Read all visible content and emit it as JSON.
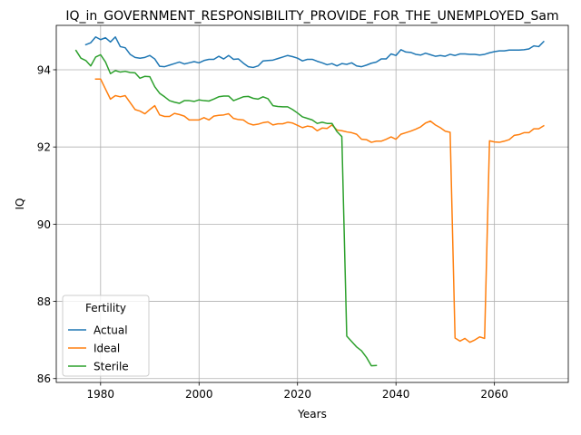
{
  "chart_data": {
    "type": "line",
    "title": "IQ_in_GOVERNMENT_RESPONSIBILITY_PROVIDE_FOR_THE_UNEMPLOYED_Sam",
    "xlabel": "Years",
    "ylabel": "IQ",
    "xlim": [
      1971,
      2075
    ],
    "ylim": [
      85.9,
      95.15
    ],
    "xticks": [
      1980,
      2000,
      2020,
      2040,
      2060
    ],
    "yticks": [
      86,
      88,
      90,
      92,
      94
    ],
    "grid": true,
    "legend": {
      "title": "Fertility",
      "location": "lower-left"
    },
    "series": [
      {
        "name": "Actual",
        "color": "#1f77b4",
        "points": [
          [
            1977,
            94.65
          ],
          [
            1978,
            94.7
          ],
          [
            1979,
            94.85
          ],
          [
            1980,
            94.78
          ],
          [
            1981,
            94.83
          ],
          [
            1982,
            94.72
          ],
          [
            1983,
            94.85
          ],
          [
            1984,
            94.6
          ],
          [
            1985,
            94.57
          ],
          [
            1986,
            94.4
          ],
          [
            1987,
            94.32
          ],
          [
            1988,
            94.3
          ],
          [
            1989,
            94.32
          ],
          [
            1990,
            94.37
          ],
          [
            1991,
            94.28
          ],
          [
            1992,
            94.09
          ],
          [
            1993,
            94.08
          ],
          [
            1994,
            94.12
          ],
          [
            1995,
            94.16
          ],
          [
            1996,
            94.2
          ],
          [
            1997,
            94.15
          ],
          [
            1998,
            94.18
          ],
          [
            1999,
            94.21
          ],
          [
            2000,
            94.18
          ],
          [
            2001,
            94.24
          ],
          [
            2002,
            94.27
          ],
          [
            2003,
            94.27
          ],
          [
            2004,
            94.35
          ],
          [
            2005,
            94.28
          ],
          [
            2006,
            94.37
          ],
          [
            2007,
            94.27
          ],
          [
            2008,
            94.28
          ],
          [
            2009,
            94.17
          ],
          [
            2010,
            94.08
          ],
          [
            2011,
            94.06
          ],
          [
            2012,
            94.1
          ],
          [
            2013,
            94.23
          ],
          [
            2014,
            94.24
          ],
          [
            2015,
            94.25
          ],
          [
            2016,
            94.29
          ],
          [
            2017,
            94.33
          ],
          [
            2018,
            94.37
          ],
          [
            2019,
            94.34
          ],
          [
            2020,
            94.3
          ],
          [
            2021,
            94.23
          ],
          [
            2022,
            94.27
          ],
          [
            2023,
            94.27
          ],
          [
            2024,
            94.22
          ],
          [
            2025,
            94.18
          ],
          [
            2026,
            94.13
          ],
          [
            2027,
            94.16
          ],
          [
            2028,
            94.1
          ],
          [
            2029,
            94.16
          ],
          [
            2030,
            94.14
          ],
          [
            2031,
            94.18
          ],
          [
            2032,
            94.1
          ],
          [
            2033,
            94.08
          ],
          [
            2034,
            94.12
          ],
          [
            2035,
            94.17
          ],
          [
            2036,
            94.2
          ],
          [
            2037,
            94.28
          ],
          [
            2038,
            94.28
          ],
          [
            2039,
            94.41
          ],
          [
            2040,
            94.37
          ],
          [
            2041,
            94.52
          ],
          [
            2042,
            94.46
          ],
          [
            2043,
            94.45
          ],
          [
            2044,
            94.4
          ],
          [
            2045,
            94.38
          ],
          [
            2046,
            94.43
          ],
          [
            2047,
            94.39
          ],
          [
            2048,
            94.35
          ],
          [
            2049,
            94.37
          ],
          [
            2050,
            94.35
          ],
          [
            2051,
            94.4
          ],
          [
            2052,
            94.37
          ],
          [
            2053,
            94.41
          ],
          [
            2054,
            94.41
          ],
          [
            2055,
            94.4
          ],
          [
            2056,
            94.4
          ],
          [
            2057,
            94.38
          ],
          [
            2058,
            94.4
          ],
          [
            2059,
            94.44
          ],
          [
            2060,
            94.47
          ],
          [
            2061,
            94.49
          ],
          [
            2062,
            94.49
          ],
          [
            2063,
            94.51
          ],
          [
            2064,
            94.51
          ],
          [
            2065,
            94.51
          ],
          [
            2066,
            94.52
          ],
          [
            2067,
            94.54
          ],
          [
            2068,
            94.62
          ],
          [
            2069,
            94.6
          ],
          [
            2070,
            94.73
          ]
        ]
      },
      {
        "name": "Ideal",
        "color": "#ff7f0e",
        "points": [
          [
            1979,
            93.76
          ],
          [
            1980,
            93.76
          ],
          [
            1981,
            93.5
          ],
          [
            1982,
            93.24
          ],
          [
            1983,
            93.33
          ],
          [
            1984,
            93.3
          ],
          [
            1985,
            93.33
          ],
          [
            1986,
            93.15
          ],
          [
            1987,
            92.97
          ],
          [
            1988,
            92.93
          ],
          [
            1989,
            92.86
          ],
          [
            1990,
            92.97
          ],
          [
            1991,
            93.07
          ],
          [
            1992,
            92.83
          ],
          [
            1993,
            92.79
          ],
          [
            1994,
            92.79
          ],
          [
            1995,
            92.87
          ],
          [
            1996,
            92.84
          ],
          [
            1997,
            92.8
          ],
          [
            1998,
            92.7
          ],
          [
            1999,
            92.7
          ],
          [
            2000,
            92.7
          ],
          [
            2001,
            92.76
          ],
          [
            2002,
            92.7
          ],
          [
            2003,
            92.8
          ],
          [
            2004,
            92.82
          ],
          [
            2005,
            92.83
          ],
          [
            2006,
            92.86
          ],
          [
            2007,
            92.74
          ],
          [
            2008,
            92.71
          ],
          [
            2009,
            92.7
          ],
          [
            2010,
            92.61
          ],
          [
            2011,
            92.57
          ],
          [
            2012,
            92.59
          ],
          [
            2013,
            92.63
          ],
          [
            2014,
            92.65
          ],
          [
            2015,
            92.57
          ],
          [
            2016,
            92.6
          ],
          [
            2017,
            92.6
          ],
          [
            2018,
            92.64
          ],
          [
            2019,
            92.62
          ],
          [
            2020,
            92.56
          ],
          [
            2021,
            92.5
          ],
          [
            2022,
            92.54
          ],
          [
            2023,
            92.52
          ],
          [
            2024,
            92.42
          ],
          [
            2025,
            92.49
          ],
          [
            2026,
            92.48
          ],
          [
            2027,
            92.57
          ],
          [
            2028,
            92.44
          ],
          [
            2029,
            92.42
          ],
          [
            2030,
            92.39
          ],
          [
            2031,
            92.37
          ],
          [
            2032,
            92.33
          ],
          [
            2033,
            92.2
          ],
          [
            2034,
            92.19
          ],
          [
            2035,
            92.12
          ],
          [
            2036,
            92.15
          ],
          [
            2037,
            92.15
          ],
          [
            2038,
            92.2
          ],
          [
            2039,
            92.26
          ],
          [
            2040,
            92.2
          ],
          [
            2041,
            92.33
          ],
          [
            2042,
            92.37
          ],
          [
            2043,
            92.41
          ],
          [
            2044,
            92.46
          ],
          [
            2045,
            92.52
          ],
          [
            2046,
            92.62
          ],
          [
            2047,
            92.67
          ],
          [
            2048,
            92.57
          ],
          [
            2049,
            92.5
          ],
          [
            2050,
            92.41
          ],
          [
            2051,
            92.38
          ],
          [
            2052,
            87.05
          ],
          [
            2053,
            86.97
          ],
          [
            2054,
            87.04
          ],
          [
            2055,
            86.94
          ],
          [
            2056,
            87.0
          ],
          [
            2057,
            87.08
          ],
          [
            2058,
            87.04
          ],
          [
            2059,
            92.16
          ],
          [
            2060,
            92.13
          ],
          [
            2061,
            92.12
          ],
          [
            2062,
            92.15
          ],
          [
            2063,
            92.19
          ],
          [
            2064,
            92.3
          ],
          [
            2065,
            92.32
          ],
          [
            2066,
            92.37
          ],
          [
            2067,
            92.37
          ],
          [
            2068,
            92.47
          ],
          [
            2069,
            92.47
          ],
          [
            2070,
            92.55
          ]
        ]
      },
      {
        "name": "Sterile",
        "color": "#2ca02c",
        "points": [
          [
            1975,
            94.5
          ],
          [
            1976,
            94.3
          ],
          [
            1977,
            94.24
          ],
          [
            1978,
            94.1
          ],
          [
            1979,
            94.33
          ],
          [
            1980,
            94.39
          ],
          [
            1981,
            94.2
          ],
          [
            1982,
            93.9
          ],
          [
            1983,
            93.98
          ],
          [
            1984,
            93.94
          ],
          [
            1985,
            93.96
          ],
          [
            1986,
            93.93
          ],
          [
            1987,
            93.92
          ],
          [
            1988,
            93.78
          ],
          [
            1989,
            93.83
          ],
          [
            1990,
            93.82
          ],
          [
            1991,
            93.56
          ],
          [
            1992,
            93.39
          ],
          [
            1993,
            93.3
          ],
          [
            1994,
            93.2
          ],
          [
            1995,
            93.16
          ],
          [
            1996,
            93.13
          ],
          [
            1997,
            93.2
          ],
          [
            1998,
            93.2
          ],
          [
            1999,
            93.18
          ],
          [
            2000,
            93.22
          ],
          [
            2001,
            93.2
          ],
          [
            2002,
            93.19
          ],
          [
            2003,
            93.24
          ],
          [
            2004,
            93.3
          ],
          [
            2005,
            93.32
          ],
          [
            2006,
            93.32
          ],
          [
            2007,
            93.2
          ],
          [
            2008,
            93.25
          ],
          [
            2009,
            93.3
          ],
          [
            2010,
            93.31
          ],
          [
            2011,
            93.26
          ],
          [
            2012,
            93.24
          ],
          [
            2013,
            93.3
          ],
          [
            2014,
            93.25
          ],
          [
            2015,
            93.07
          ],
          [
            2016,
            93.05
          ],
          [
            2017,
            93.04
          ],
          [
            2018,
            93.04
          ],
          [
            2019,
            92.97
          ],
          [
            2020,
            92.88
          ],
          [
            2021,
            92.78
          ],
          [
            2022,
            92.74
          ],
          [
            2023,
            92.7
          ],
          [
            2024,
            92.61
          ],
          [
            2025,
            92.64
          ],
          [
            2026,
            92.61
          ],
          [
            2027,
            92.61
          ],
          [
            2028,
            92.4
          ],
          [
            2029,
            92.27
          ],
          [
            2030,
            87.1
          ],
          [
            2031,
            86.96
          ],
          [
            2032,
            86.82
          ],
          [
            2033,
            86.72
          ],
          [
            2034,
            86.55
          ],
          [
            2035,
            86.33
          ],
          [
            2036,
            86.34
          ]
        ]
      }
    ]
  }
}
